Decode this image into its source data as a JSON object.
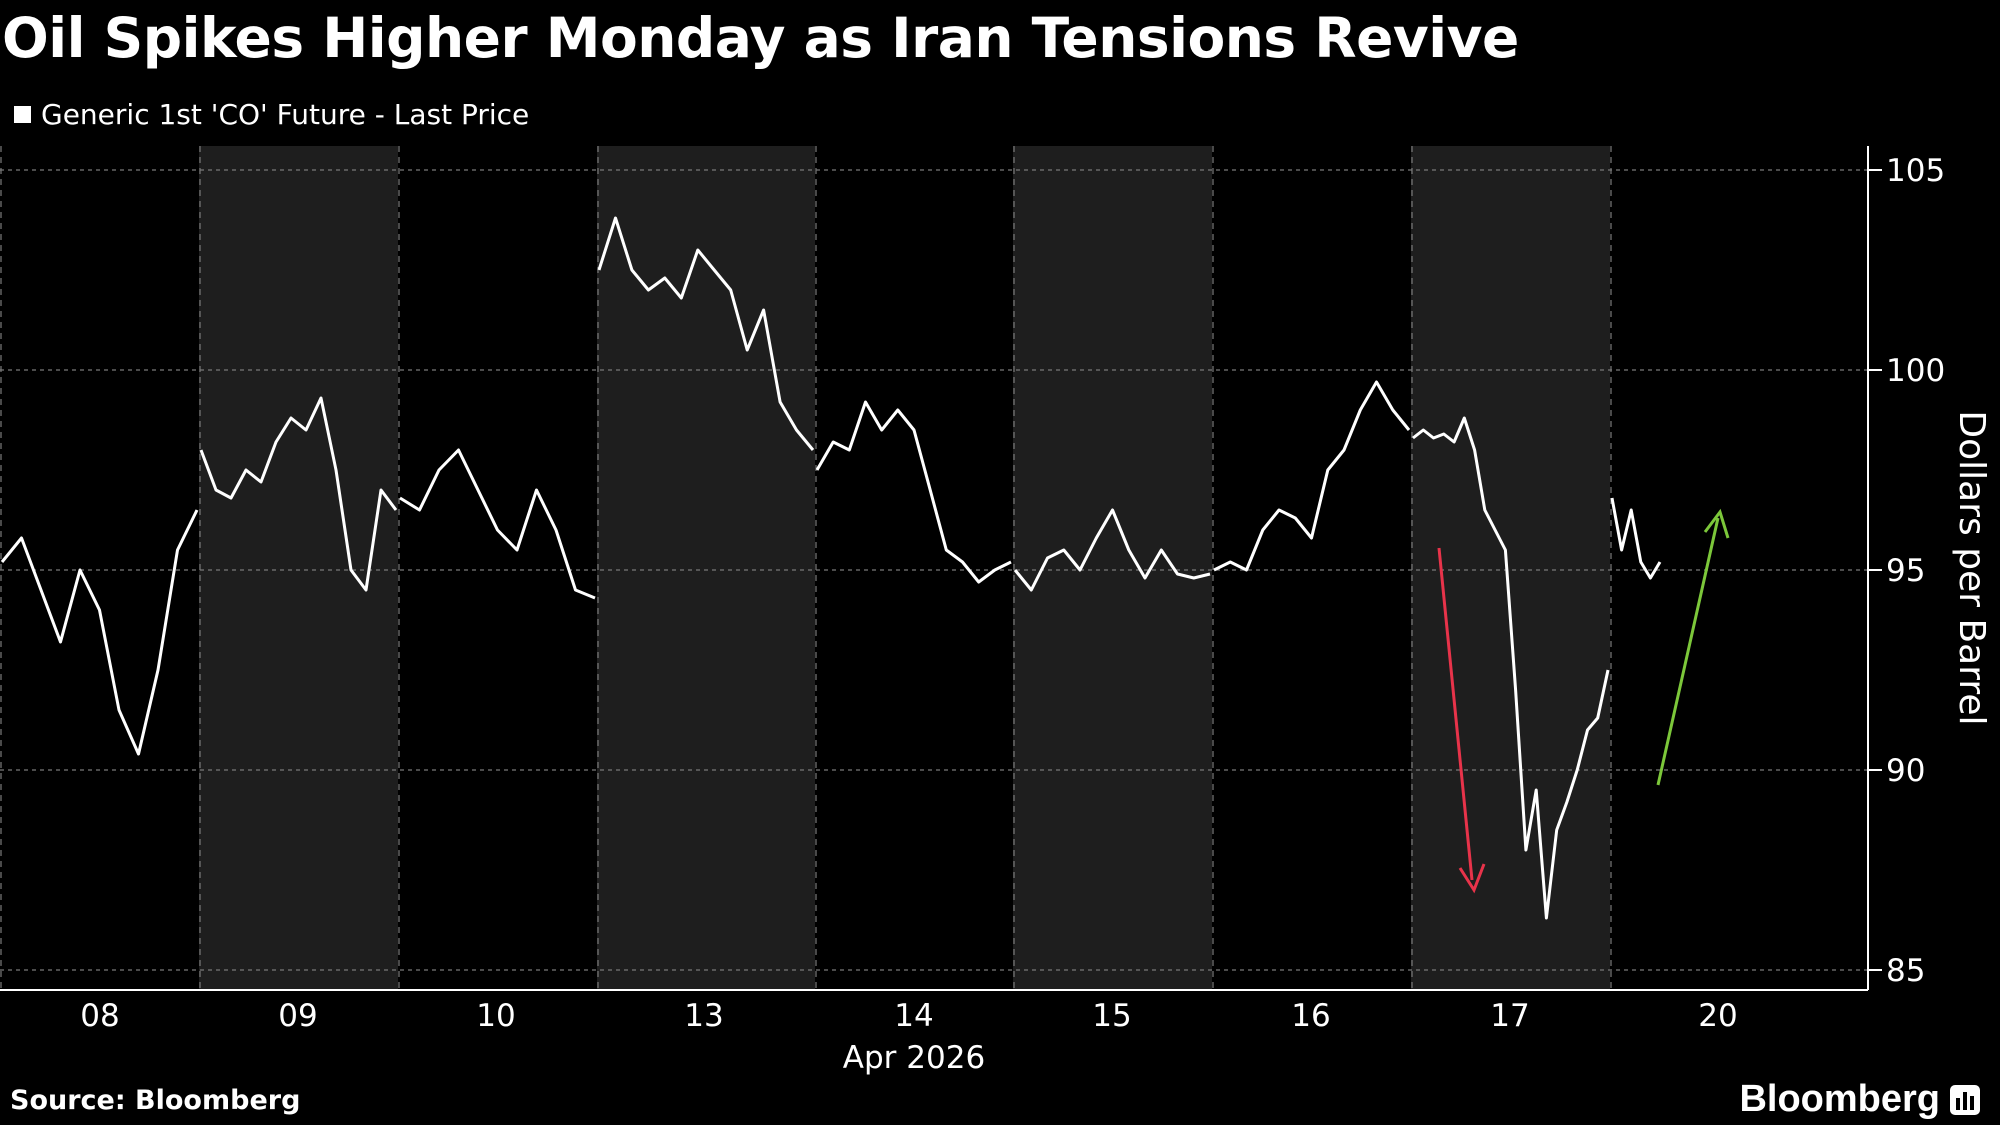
{
  "title": "Oil Spikes Higher Monday as Iran Tensions Revive",
  "legend": {
    "label": "Generic 1st 'CO' Future - Last Price"
  },
  "source": "Source: Bloomberg",
  "brand": "Bloomberg",
  "colors": {
    "background": "#000000",
    "line": "#ffffff",
    "shade": "#1e1e1e",
    "grid": "#7a7a7a",
    "down_arrow": "#e8334a",
    "up_arrow": "#7cc73a"
  },
  "chart_data": {
    "type": "line",
    "title": "Oil Spikes Higher Monday as Iran Tensions Revive",
    "xlabel": "Apr 2026",
    "ylabel": "Dollars per Barrel",
    "ylim": [
      84.5,
      105.6
    ],
    "yticks": [
      85,
      90,
      95,
      100,
      105
    ],
    "grid": true,
    "legend_position": "top-left",
    "x_tick_labels": [
      "08",
      "09",
      "10",
      "13",
      "14",
      "15",
      "16",
      "17",
      "20"
    ],
    "x_month_label": "Apr 2026",
    "shaded_days": [
      "09",
      "13",
      "15",
      "17"
    ],
    "series": [
      {
        "name": "Generic 1st 'CO' Future - Last Price",
        "points": [
          [
            "08",
            95.2
          ],
          [
            "08",
            95.8
          ],
          [
            "08",
            94.5
          ],
          [
            "08",
            93.2
          ],
          [
            "08",
            95.0
          ],
          [
            "08",
            94.0
          ],
          [
            "08",
            91.5
          ],
          [
            "08",
            90.4
          ],
          [
            "08",
            92.5
          ],
          [
            "08",
            95.5
          ],
          [
            "08",
            96.5
          ],
          [
            "09",
            98.0
          ],
          [
            "09",
            97.0
          ],
          [
            "09",
            96.8
          ],
          [
            "09",
            97.5
          ],
          [
            "09",
            97.2
          ],
          [
            "09",
            98.2
          ],
          [
            "09",
            98.8
          ],
          [
            "09",
            98.5
          ],
          [
            "09",
            99.3
          ],
          [
            "09",
            97.5
          ],
          [
            "09",
            95.0
          ],
          [
            "09",
            94.5
          ],
          [
            "09",
            97.0
          ],
          [
            "09",
            96.5
          ],
          [
            "10",
            96.8
          ],
          [
            "10",
            96.5
          ],
          [
            "10",
            97.5
          ],
          [
            "10",
            98.0
          ],
          [
            "10",
            97.0
          ],
          [
            "10",
            96.0
          ],
          [
            "10",
            95.5
          ],
          [
            "10",
            97.0
          ],
          [
            "10",
            96.0
          ],
          [
            "10",
            94.5
          ],
          [
            "10",
            94.3
          ],
          [
            "13",
            102.5
          ],
          [
            "13",
            103.8
          ],
          [
            "13",
            102.5
          ],
          [
            "13",
            102.0
          ],
          [
            "13",
            102.3
          ],
          [
            "13",
            101.8
          ],
          [
            "13",
            103.0
          ],
          [
            "13",
            102.5
          ],
          [
            "13",
            102.0
          ],
          [
            "13",
            100.5
          ],
          [
            "13",
            101.5
          ],
          [
            "13",
            99.2
          ],
          [
            "13",
            98.5
          ],
          [
            "13",
            98.0
          ],
          [
            "14",
            97.5
          ],
          [
            "14",
            98.2
          ],
          [
            "14",
            98.0
          ],
          [
            "14",
            99.2
          ],
          [
            "14",
            98.5
          ],
          [
            "14",
            99.0
          ],
          [
            "14",
            98.5
          ],
          [
            "14",
            97.0
          ],
          [
            "14",
            95.5
          ],
          [
            "14",
            95.2
          ],
          [
            "14",
            94.7
          ],
          [
            "14",
            95.0
          ],
          [
            "14",
            95.2
          ],
          [
            "15",
            95.0
          ],
          [
            "15",
            94.5
          ],
          [
            "15",
            95.3
          ],
          [
            "15",
            95.5
          ],
          [
            "15",
            95.0
          ],
          [
            "15",
            95.8
          ],
          [
            "15",
            96.5
          ],
          [
            "15",
            95.5
          ],
          [
            "15",
            94.8
          ],
          [
            "15",
            95.5
          ],
          [
            "15",
            94.9
          ],
          [
            "15",
            94.8
          ],
          [
            "15",
            94.9
          ],
          [
            "16",
            95.0
          ],
          [
            "16",
            95.2
          ],
          [
            "16",
            95.0
          ],
          [
            "16",
            96.0
          ],
          [
            "16",
            96.5
          ],
          [
            "16",
            96.3
          ],
          [
            "16",
            95.8
          ],
          [
            "16",
            97.5
          ],
          [
            "16",
            98.0
          ],
          [
            "16",
            99.0
          ],
          [
            "16",
            99.7
          ],
          [
            "16",
            99.0
          ],
          [
            "16",
            98.5
          ],
          [
            "17",
            98.3
          ],
          [
            "17",
            98.5
          ],
          [
            "17",
            98.3
          ],
          [
            "17",
            98.4
          ],
          [
            "17",
            98.2
          ],
          [
            "17",
            98.8
          ],
          [
            "17",
            98.0
          ],
          [
            "17",
            96.5
          ],
          [
            "17",
            96.0
          ],
          [
            "17",
            95.5
          ],
          [
            "17",
            92.0
          ],
          [
            "17",
            88.0
          ],
          [
            "17",
            89.5
          ],
          [
            "17",
            86.3
          ],
          [
            "17",
            88.5
          ],
          [
            "17",
            89.2
          ],
          [
            "17",
            90.0
          ],
          [
            "17",
            91.0
          ],
          [
            "17",
            91.3
          ],
          [
            "17",
            92.5
          ],
          [
            "20",
            96.8
          ],
          [
            "20",
            95.5
          ],
          [
            "20",
            96.5
          ],
          [
            "20",
            95.2
          ],
          [
            "20",
            94.8
          ],
          [
            "20",
            95.2
          ]
        ]
      }
    ]
  }
}
